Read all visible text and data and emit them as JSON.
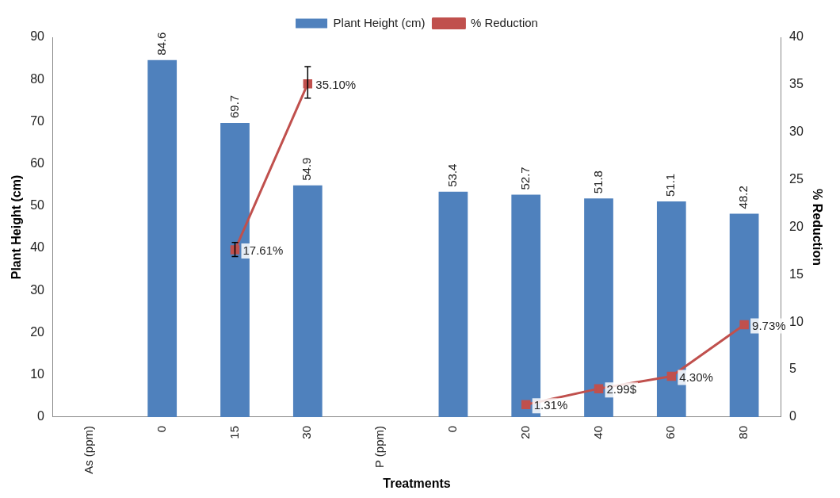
{
  "chart_data": {
    "type": "bar",
    "xlabel": "Treatments",
    "ylabel": "Plant Height (cm)",
    "y2label": "% Reduction",
    "categories": [
      "As (ppm)",
      "0",
      "15",
      "30",
      "P (ppm)",
      "0",
      "20",
      "40",
      "60",
      "80"
    ],
    "series": [
      {
        "name": "Plant Height (cm)",
        "color": "#4f81bd",
        "values": [
          null,
          84.6,
          69.7,
          54.9,
          null,
          53.4,
          52.7,
          51.8,
          51.1,
          48.2
        ],
        "value_labels": [
          null,
          "84.6",
          "69.7",
          "54.9",
          null,
          "53.4",
          "52.7",
          "51.8",
          "51.1",
          "48.2"
        ]
      },
      {
        "name": "% Reduction",
        "type": "line",
        "axis": "y2",
        "color": "#c0504d",
        "marker": "square",
        "values": [
          null,
          null,
          17.61,
          35.1,
          null,
          null,
          1.31,
          2.99,
          4.3,
          9.73
        ],
        "value_labels": [
          null,
          null,
          "17.61%",
          "35.10%",
          null,
          null,
          "1.31%",
          "2.99$",
          "4.30%",
          "9.73%"
        ],
        "errors": [
          null,
          null,
          [
            16.9,
            18.4
          ],
          [
            33.6,
            36.9
          ],
          null,
          null,
          null,
          null,
          null,
          null
        ]
      }
    ],
    "ylim": [
      0,
      90
    ],
    "yticks": [
      0,
      10,
      20,
      30,
      40,
      50,
      60,
      70,
      80,
      90
    ],
    "y2lim": [
      0,
      40
    ],
    "y2ticks": [
      0,
      5,
      10,
      15,
      20,
      25,
      30,
      35,
      40
    ],
    "grid": false,
    "legend": "top"
  }
}
